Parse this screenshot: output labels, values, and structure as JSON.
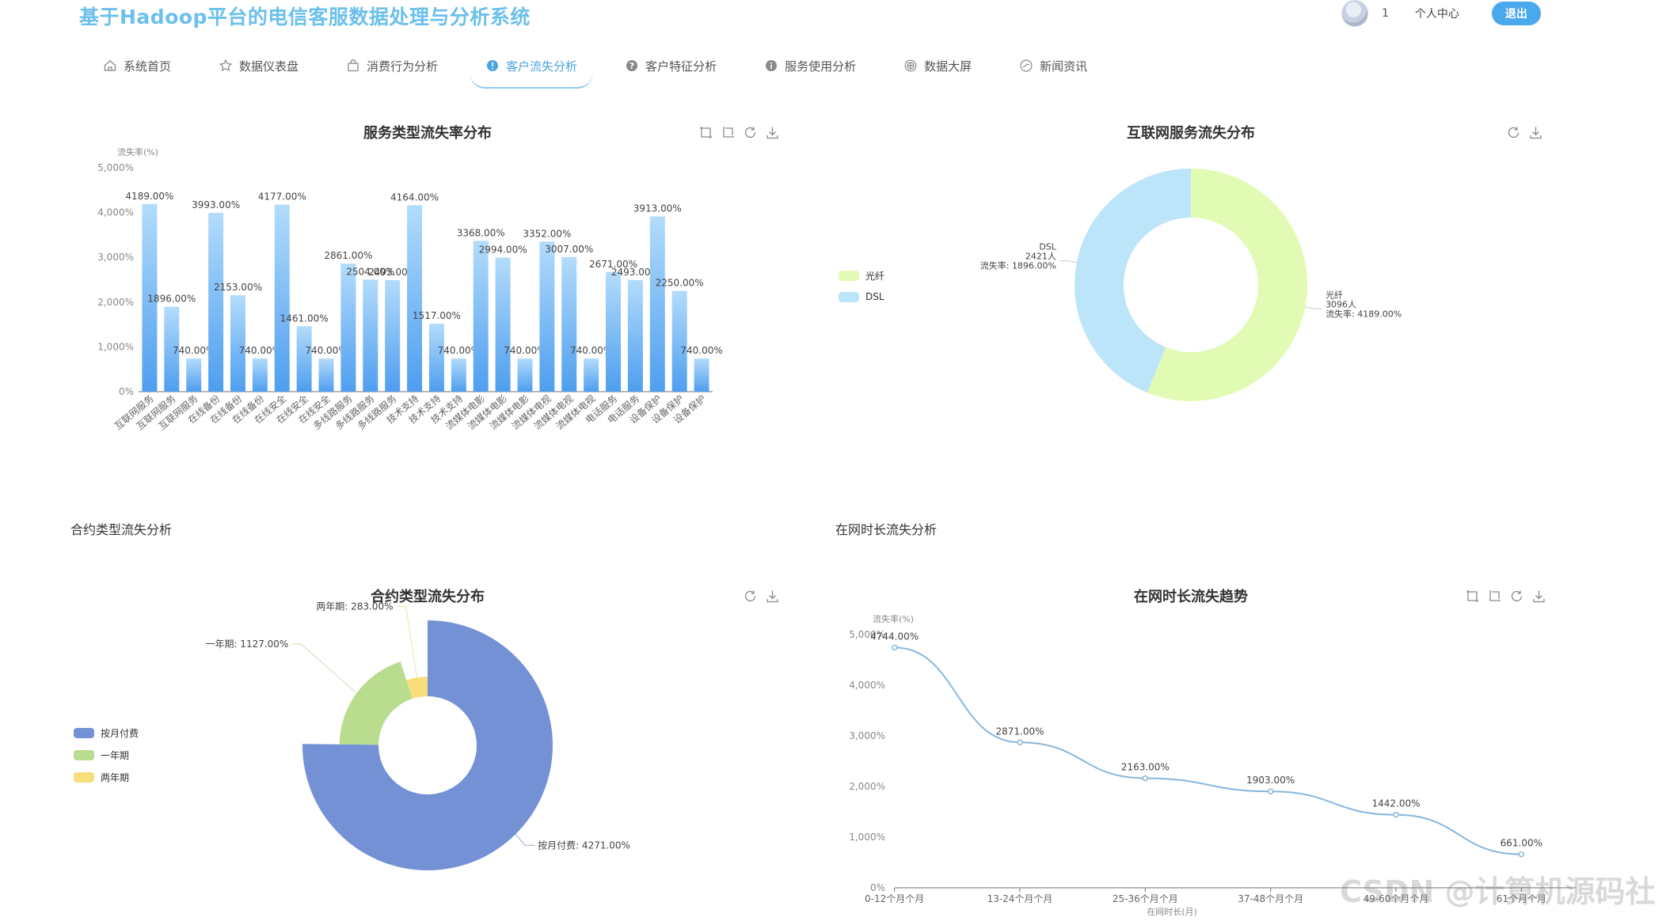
{
  "app_title": "基于Hadoop平台的电信客服数据处理与分析系统",
  "user": {
    "name": "1",
    "center_label": "个人中心",
    "logout_label": "退出"
  },
  "nav": [
    {
      "label": "系统首页",
      "icon": "home-icon",
      "active": false
    },
    {
      "label": "数据仪表盘",
      "icon": "star-icon",
      "active": false
    },
    {
      "label": "消费行为分析",
      "icon": "bag-icon",
      "active": false
    },
    {
      "label": "客户流失分析",
      "icon": "alert-circle-icon",
      "active": true
    },
    {
      "label": "客户特征分析",
      "icon": "question-circle-icon",
      "active": false
    },
    {
      "label": "服务使用分析",
      "icon": "info-circle-icon",
      "active": false
    },
    {
      "label": "数据大屏",
      "icon": "monitor-icon",
      "active": false
    },
    {
      "label": "新闻资讯",
      "icon": "compass-icon",
      "active": false
    }
  ],
  "sections": {
    "contract": "合约类型流失分析",
    "tenure": "在网时长流失分析"
  },
  "colors": {
    "accent": "#4aa8ec",
    "bar_top": "#b3dcfb",
    "bar_bottom": "#4e9ef0",
    "fiber": "#e2fbb4",
    "dsl": "#bde5fa",
    "monthly": "#7591d5",
    "one_year": "#b9dc8f",
    "two_year": "#f7dd7c",
    "line": "#88b6dc"
  },
  "chart_data": [
    {
      "id": "service-churn",
      "type": "bar",
      "title": "服务类型流失率分布",
      "ylabel": "流失率(%)",
      "ylim": [
        0,
        5000
      ],
      "y_ticks": [
        "0%",
        "1,000%",
        "2,000%",
        "3,000%",
        "4,000%",
        "5,000%"
      ],
      "categories": [
        "互联网服务",
        "互联网服务",
        "互联网服务",
        "在线备份",
        "在线备份",
        "在线备份",
        "在线安全",
        "在线安全",
        "在线安全",
        "多线路服务",
        "多线路服务",
        "多线路服务",
        "技术支持",
        "技术支持",
        "技术支持",
        "流媒体电影",
        "流媒体电影",
        "流媒体电影",
        "流媒体电视",
        "流媒体电视",
        "流媒体电视",
        "电话服务",
        "电话服务",
        "设备保护",
        "设备保护",
        "设备保护"
      ],
      "values": [
        4189,
        1896,
        740,
        3993,
        2153,
        740,
        4177,
        1461,
        740,
        2861,
        2504,
        2493,
        4164,
        1517,
        740,
        3368,
        2994,
        740,
        3352,
        3007,
        740,
        2671,
        2493,
        3913,
        2250,
        740
      ],
      "labels": [
        "4189.00%",
        "1896.00%",
        "740.00%",
        "3993.00%",
        "2153.00%",
        "740.00%",
        "4177.00%",
        "1461.00%",
        "740.00%",
        "2861.00%",
        "2504.00%",
        "2493.00%",
        "4164.00%",
        "1517.00%",
        "740.00%",
        "3368.00%",
        "2994.00%",
        "740.00%",
        "3352.00%",
        "3007.00%",
        "740.00%",
        "2671.00%",
        "2493.00%",
        "3913.00%",
        "2250.00%",
        "740.00%"
      ],
      "grid": false
    },
    {
      "id": "internet-churn",
      "type": "pie",
      "title": "互联网服务流失分布",
      "legend": [
        "光纤",
        "DSL"
      ],
      "legend_position": "left",
      "slices": [
        {
          "name": "光纤",
          "value": 3096,
          "rate": 4189,
          "label_lines": [
            "光纤",
            "3096人",
            "流失率: 4189.00%"
          ]
        },
        {
          "name": "DSL",
          "value": 2421,
          "rate": 1896,
          "label_lines": [
            "DSL",
            "2421人",
            "流失率: 1896.00%"
          ]
        }
      ]
    },
    {
      "id": "contract-churn",
      "type": "pie",
      "title": "合约类型流失分布",
      "legend": [
        "按月付费",
        "一年期",
        "两年期"
      ],
      "legend_position": "left",
      "slices": [
        {
          "name": "按月付费",
          "value": 4271,
          "label": "按月付费: 4271.00%"
        },
        {
          "name": "一年期",
          "value": 1127,
          "label": "一年期: 1127.00%"
        },
        {
          "name": "两年期",
          "value": 283,
          "label": "两年期: 283.00%"
        }
      ]
    },
    {
      "id": "tenure-churn",
      "type": "line",
      "title": "在网时长流失趋势",
      "ylabel": "流失率(%)",
      "xlabel": "在网时长(月)",
      "ylim": [
        0,
        5000
      ],
      "y_ticks": [
        "0%",
        "1,000%",
        "2,000%",
        "3,000%",
        "4,000%",
        "5,000%"
      ],
      "categories": [
        "0-12个月个月",
        "13-24个月个月",
        "25-36个月个月",
        "37-48个月个月",
        "49-60个月个月",
        "61个月个月"
      ],
      "values": [
        4744,
        2871,
        2163,
        1903,
        1442,
        661
      ],
      "labels": [
        "4744.00%",
        "2871.00%",
        "2163.00%",
        "1903.00%",
        "1442.00%",
        "661.00%"
      ],
      "grid": false
    }
  ],
  "watermark": "CSDN @计算机源码社"
}
